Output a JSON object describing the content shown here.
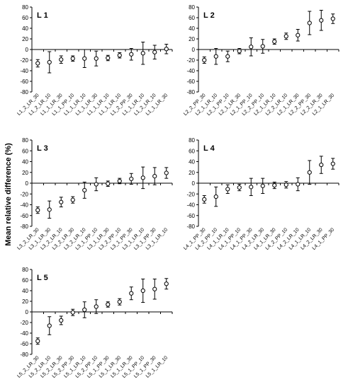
{
  "figure": {
    "ylabel": "Mean relative difference (%)"
  },
  "chart_data": [
    {
      "type": "scatter",
      "panel_label": "L 1",
      "ylim": [
        -80,
        80
      ],
      "yticks": [
        -80,
        -60,
        -40,
        -20,
        0,
        20,
        40,
        60,
        80
      ],
      "grid": false,
      "categories": [
        "L1_2_LR_30",
        "L1_2_LR_10",
        "L1_1_LR_30",
        "L1_1_PP_10",
        "L1_1_LR_10",
        "L1_1_LR_30",
        "L1_1_LR_10",
        "L1_1_LR_10",
        "L1_2_PP_30",
        "L1_1_LR_10",
        "L1_2_LR_10",
        "L1_1_LR_30"
      ],
      "values": [
        -26,
        -24,
        -19,
        -17,
        -17,
        -17,
        -16,
        -11,
        -9,
        -7,
        -5,
        1
      ],
      "errors": [
        7,
        20,
        7,
        5,
        17,
        14,
        5,
        5,
        11,
        21,
        13,
        9
      ]
    },
    {
      "type": "scatter",
      "panel_label": "L 2",
      "ylim": [
        -80,
        80
      ],
      "yticks": [
        -80,
        -60,
        -40,
        -20,
        0,
        20,
        40,
        60,
        80
      ],
      "grid": false,
      "categories": [
        "L2_2_PP_30",
        "L2_1_LR_10",
        "L2_1_PP_10",
        "L2_1_LR_30",
        "L2_1_PP_10",
        "L2_2_PP_10",
        "L2_1_LR_10",
        "L2_2_LR_10",
        "L2_1_LR_30",
        "L2_2_PP_30",
        "L2_2_LR_30",
        "L2_1_LR_30"
      ],
      "values": [
        -20,
        -13,
        -13,
        -3,
        5,
        6,
        15,
        25,
        27,
        50,
        55,
        58
      ],
      "errors": [
        6,
        15,
        10,
        5,
        17,
        13,
        5,
        6,
        11,
        22,
        19,
        9
      ]
    },
    {
      "type": "scatter",
      "panel_label": "L 3",
      "ylim": [
        -80,
        80
      ],
      "yticks": [
        -80,
        -60,
        -40,
        -20,
        0,
        20,
        40,
        60,
        80
      ],
      "grid": false,
      "categories": [
        "L3_2_LR_30",
        "L3_1_LR_30",
        "L3_2_LR_10",
        "L3_2_LR_30",
        "L3_2_LR_10",
        "L3_1_PP_10",
        "L3_1_LR_30",
        "L3_2_PP_10",
        "L3_1_PP_30",
        "L3_1_LR_10",
        "L3_1_PP_30",
        "L3_1_LR_10"
      ],
      "values": [
        -50,
        -49,
        -35,
        -31,
        -13,
        -2,
        -1,
        4,
        8,
        10,
        13,
        19
      ],
      "errors": [
        6,
        16,
        9,
        6,
        15,
        12,
        5,
        5,
        10,
        20,
        16,
        10
      ]
    },
    {
      "type": "scatter",
      "panel_label": "L 4",
      "ylim": [
        -80,
        80
      ],
      "yticks": [
        -80,
        -60,
        -40,
        -20,
        0,
        20,
        40,
        60,
        80
      ],
      "grid": false,
      "categories": [
        "L4_1_PP_30",
        "L4_2_PP_10",
        "L4_1_LR_10",
        "L4_1_PP_10",
        "L4_1_PP_30",
        "L4_2_LR_30",
        "L4_1_LR_30",
        "L4_2_PP_10",
        "L4_2_LR_10",
        "L4_1_LR_10",
        "L4_2_LR_30",
        "L4_1_PP_30"
      ],
      "values": [
        -30,
        -25,
        -11,
        -8,
        -7,
        -5,
        -4,
        -3,
        -2,
        20,
        34,
        36
      ],
      "errors": [
        7,
        18,
        8,
        6,
        16,
        14,
        6,
        6,
        12,
        22,
        16,
        10
      ]
    },
    {
      "type": "scatter",
      "panel_label": "L 5",
      "ylim": [
        -80,
        80
      ],
      "yticks": [
        -80,
        -60,
        -40,
        -20,
        0,
        20,
        40,
        60,
        80
      ],
      "grid": false,
      "categories": [
        "L5_2_LR_30",
        "L5_2_LR_10",
        "L5_2_LR_30",
        "L5_2_PP_30",
        "L5_1_LR_10",
        "L5_2_PP_10",
        "L5_1_PP_30",
        "L5_1_LR_30",
        "L5_1_LR_30",
        "L5_1_PP_10",
        "L5_1_PP_30",
        "L5_1_LR_10"
      ],
      "values": [
        -55,
        -26,
        -16,
        -1,
        4,
        10,
        14,
        19,
        35,
        40,
        43,
        53
      ],
      "errors": [
        6,
        17,
        8,
        6,
        15,
        13,
        5,
        6,
        12,
        22,
        19,
        10
      ]
    }
  ]
}
